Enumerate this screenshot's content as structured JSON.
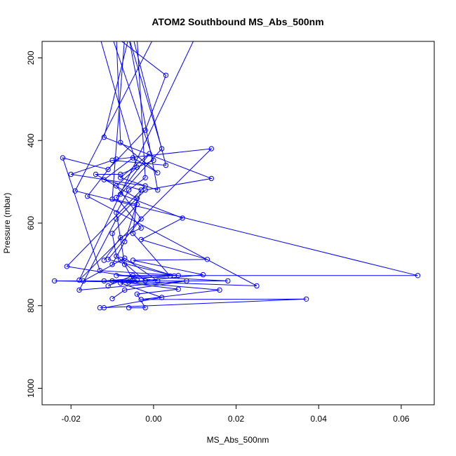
{
  "chart_data": {
    "type": "line",
    "title": "ATOM2 Southbound MS_Abs_500nm",
    "xlabel": "MS_Abs_500nm",
    "ylabel": "Pressure (mbar)",
    "xlim": [
      -0.027,
      0.068
    ],
    "ylim": [
      1040,
      160
    ],
    "y_reversed": true,
    "xticks": [
      -0.02,
      0.0,
      0.02,
      0.04,
      0.06
    ],
    "xtick_labels": [
      "-0.02",
      "0.00",
      "0.02",
      "0.04",
      "0.06"
    ],
    "yticks": [
      200,
      400,
      600,
      800,
      1000
    ],
    "ytick_labels": [
      "200",
      "400",
      "600",
      "800",
      "1000"
    ],
    "grid": false,
    "line_color": "#0000ff",
    "series": [
      {
        "values": [
          {
            "x": -0.013,
            "y": 805
          },
          {
            "x": 0.037,
            "y": 784
          },
          {
            "x": -0.003,
            "y": 785
          },
          {
            "x": 0.016,
            "y": 762
          },
          {
            "x": -0.006,
            "y": 743
          },
          {
            "x": -0.024,
            "y": 740
          },
          {
            "x": 0.018,
            "y": 740
          },
          {
            "x": -0.009,
            "y": 727
          },
          {
            "x": 0.064,
            "y": 727
          },
          {
            "x": -0.019,
            "y": 522
          },
          {
            "x": 0.0,
            "y": 152
          }
        ]
      },
      {
        "values": [
          {
            "x": -0.012,
            "y": 805
          },
          {
            "x": 0.002,
            "y": 780
          },
          {
            "x": -0.008,
            "y": 745
          },
          {
            "x": 0.012,
            "y": 725
          },
          {
            "x": -0.005,
            "y": 690
          },
          {
            "x": 0.013,
            "y": 688
          },
          {
            "x": -0.003,
            "y": 640
          },
          {
            "x": 0.007,
            "y": 588
          },
          {
            "x": -0.008,
            "y": 530
          },
          {
            "x": 0.002,
            "y": 420
          },
          {
            "x": -0.006,
            "y": 150
          }
        ]
      },
      {
        "values": [
          {
            "x": -0.006,
            "y": 805
          },
          {
            "x": -0.002,
            "y": 805
          },
          {
            "x": -0.004,
            "y": 772
          },
          {
            "x": 0.006,
            "y": 760
          },
          {
            "x": -0.01,
            "y": 740
          },
          {
            "x": 0.025,
            "y": 752
          },
          {
            "x": -0.016,
            "y": 535
          },
          {
            "x": -0.009,
            "y": 445
          },
          {
            "x": 0.014,
            "y": 420
          },
          {
            "x": -0.018,
            "y": 738
          },
          {
            "x": 0.01,
            "y": 152
          }
        ]
      },
      {
        "values": [
          {
            "x": -0.01,
            "y": 783
          },
          {
            "x": -0.007,
            "y": 762
          },
          {
            "x": 0.008,
            "y": 740
          },
          {
            "x": -0.018,
            "y": 762
          },
          {
            "x": -0.009,
            "y": 590
          },
          {
            "x": -0.002,
            "y": 520
          },
          {
            "x": 0.014,
            "y": 492
          },
          {
            "x": -0.012,
            "y": 392
          },
          {
            "x": -0.006,
            "y": 150
          }
        ]
      },
      {
        "values": [
          {
            "x": -0.011,
            "y": 752
          },
          {
            "x": -0.005,
            "y": 727
          },
          {
            "x": 0.006,
            "y": 727
          },
          {
            "x": -0.013,
            "y": 715
          },
          {
            "x": -0.022,
            "y": 442
          },
          {
            "x": -0.011,
            "y": 470
          },
          {
            "x": -0.002,
            "y": 375
          },
          {
            "x": 0.003,
            "y": 242
          },
          {
            "x": -0.009,
            "y": 150
          }
        ]
      },
      {
        "values": [
          {
            "x": -0.017,
            "y": 740
          },
          {
            "x": -0.007,
            "y": 685
          },
          {
            "x": 0.001,
            "y": 740
          },
          {
            "x": -0.021,
            "y": 705
          },
          {
            "x": -0.002,
            "y": 510
          },
          {
            "x": -0.02,
            "y": 482
          },
          {
            "x": -0.01,
            "y": 448
          },
          {
            "x": 0.003,
            "y": 460
          },
          {
            "x": -0.005,
            "y": 150
          }
        ]
      },
      {
        "values": [
          {
            "x": -0.004,
            "y": 738
          },
          {
            "x": -0.012,
            "y": 740
          },
          {
            "x": 0.004,
            "y": 728
          },
          {
            "x": -0.005,
            "y": 625
          },
          {
            "x": -0.004,
            "y": 540
          },
          {
            "x": -0.014,
            "y": 482
          },
          {
            "x": -0.008,
            "y": 482
          },
          {
            "x": 0.0,
            "y": 448
          },
          {
            "x": -0.01,
            "y": 150
          }
        ]
      },
      {
        "values": [
          {
            "x": -0.01,
            "y": 700
          },
          {
            "x": -0.007,
            "y": 645
          },
          {
            "x": -0.003,
            "y": 520
          },
          {
            "x": -0.012,
            "y": 495
          },
          {
            "x": -0.005,
            "y": 442
          },
          {
            "x": 0.001,
            "y": 478
          },
          {
            "x": -0.008,
            "y": 405
          },
          {
            "x": -0.009,
            "y": 150
          }
        ]
      },
      {
        "values": [
          {
            "x": -0.012,
            "y": 690
          },
          {
            "x": -0.008,
            "y": 635
          },
          {
            "x": -0.003,
            "y": 612
          },
          {
            "x": -0.009,
            "y": 538
          },
          {
            "x": -0.001,
            "y": 432
          },
          {
            "x": -0.008,
            "y": 490
          },
          {
            "x": 0.001,
            "y": 520
          },
          {
            "x": -0.006,
            "y": 150
          }
        ]
      },
      {
        "values": [
          {
            "x": -0.008,
            "y": 688
          },
          {
            "x": 0.005,
            "y": 728
          },
          {
            "x": -0.011,
            "y": 688
          },
          {
            "x": -0.003,
            "y": 590
          },
          {
            "x": -0.009,
            "y": 510
          },
          {
            "x": -0.004,
            "y": 465
          },
          {
            "x": -0.013,
            "y": 150
          }
        ]
      },
      {
        "values": [
          {
            "x": -0.002,
            "y": 740
          },
          {
            "x": -0.009,
            "y": 680
          },
          {
            "x": -0.01,
            "y": 625
          },
          {
            "x": -0.004,
            "y": 555
          },
          {
            "x": -0.01,
            "y": 542
          },
          {
            "x": -0.007,
            "y": 150
          }
        ]
      },
      {
        "values": [
          {
            "x": -0.005,
            "y": 738
          },
          {
            "x": -0.007,
            "y": 700
          },
          {
            "x": -0.009,
            "y": 575
          },
          {
            "x": -0.006,
            "y": 520
          },
          {
            "x": -0.002,
            "y": 490
          },
          {
            "x": -0.004,
            "y": 150
          }
        ]
      }
    ]
  }
}
